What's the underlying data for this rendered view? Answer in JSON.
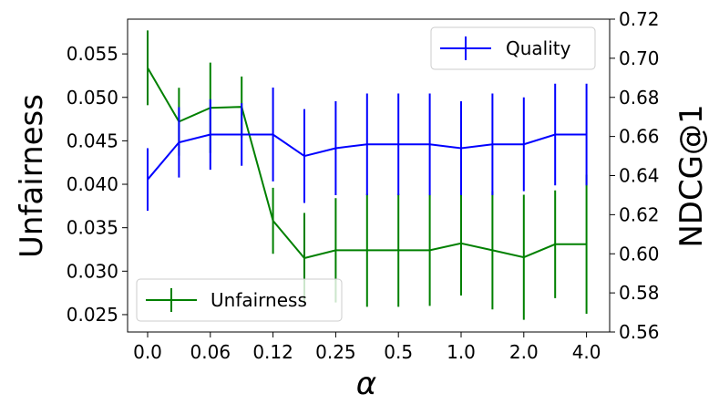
{
  "chart_data": {
    "type": "line",
    "xlabel": "α",
    "ylabel_left": "Unfairness",
    "ylabel_right": "NDCG@1",
    "x_ticks": [
      "0.0",
      "0.06",
      "0.12",
      "0.25",
      "0.5",
      "1.0",
      "2.0",
      "4.0"
    ],
    "x_tick_index": [
      0,
      2,
      4,
      6,
      8,
      10,
      12,
      14
    ],
    "n_points": 15,
    "ylim_left": [
      0.023,
      0.059
    ],
    "yticks_left": [
      "0.025",
      "0.030",
      "0.035",
      "0.040",
      "0.045",
      "0.050",
      "0.055"
    ],
    "ylim_right": [
      0.56,
      0.72
    ],
    "yticks_right": [
      "0.56",
      "0.58",
      "0.60",
      "0.62",
      "0.64",
      "0.66",
      "0.68",
      "0.70",
      "0.72"
    ],
    "grid": false,
    "series": [
      {
        "name": "Unfairness",
        "axis": "left",
        "color": "#008000",
        "legend_position": "lower-left",
        "values": [
          0.0534,
          0.0472,
          0.0488,
          0.0489,
          0.0358,
          0.0315,
          0.0324,
          0.0324,
          0.0324,
          0.0324,
          0.0332,
          0.0324,
          0.0316,
          0.0331,
          0.0331
        ],
        "err": [
          0.0043,
          0.0039,
          0.0052,
          0.0035,
          0.0038,
          0.0052,
          0.006,
          0.0065,
          0.0065,
          0.0064,
          0.006,
          0.0068,
          0.0072,
          0.0062,
          0.008
        ]
      },
      {
        "name": "Quality",
        "axis": "right",
        "color": "#0000ff",
        "legend_position": "upper-right",
        "values": [
          0.638,
          0.657,
          0.661,
          0.661,
          0.661,
          0.65,
          0.654,
          0.656,
          0.656,
          0.656,
          0.654,
          0.656,
          0.656,
          0.661,
          0.661
        ],
        "err": [
          0.016,
          0.018,
          0.018,
          0.016,
          0.024,
          0.024,
          0.024,
          0.026,
          0.026,
          0.026,
          0.024,
          0.026,
          0.024,
          0.026,
          0.026
        ]
      }
    ]
  }
}
